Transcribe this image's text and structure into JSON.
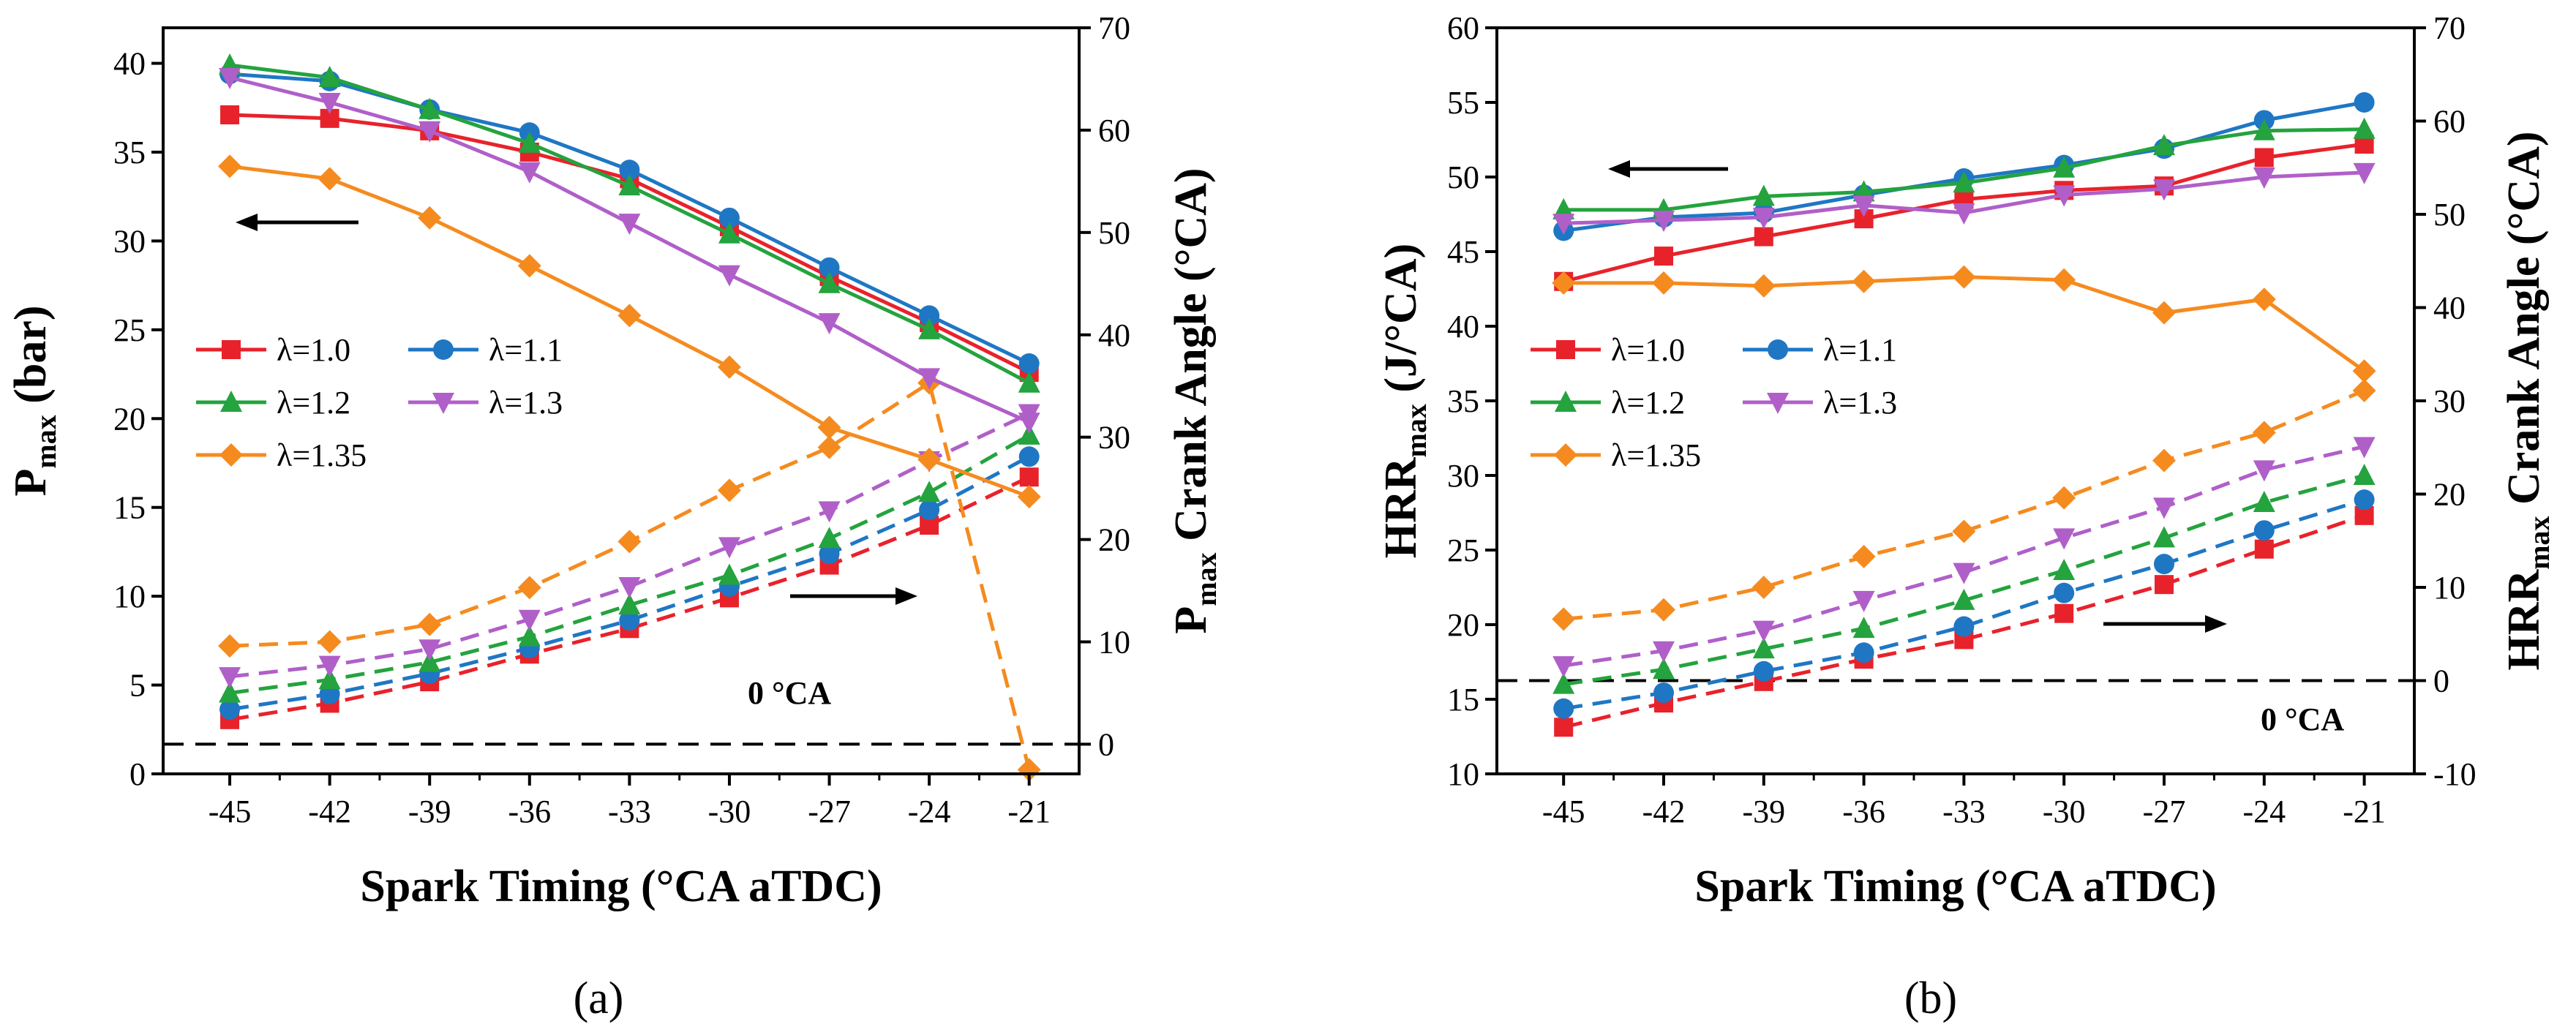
{
  "chart_data": [
    {
      "type": "line",
      "panel_label": "(a)",
      "xlabel": "Spark Timing (°CA aTDC)",
      "ylabel_left": {
        "main": "P",
        "sub": "max",
        "rest": " (bar)"
      },
      "ylabel_right": {
        "main": "P",
        "sub": "max",
        "rest": " Crank Angle (°CA)"
      },
      "x": [
        -45,
        -42,
        -39,
        -36,
        -33,
        -30,
        -27,
        -24,
        -21
      ],
      "xticks": [
        "-45",
        "-42",
        "-39",
        "-36",
        "-33",
        "-30",
        "-27",
        "-24",
        "-21"
      ],
      "ylim_left": [
        0,
        42
      ],
      "yticks_left": [
        "0",
        "5",
        "10",
        "15",
        "20",
        "25",
        "30",
        "35",
        "40"
      ],
      "ylim_right": [
        -2.9,
        70
      ],
      "yticks_right": [
        "0",
        "10",
        "20",
        "30",
        "40",
        "50",
        "60",
        "70"
      ],
      "zero_line_label": "0 °CA",
      "legend_position": "left-middle",
      "series": [
        {
          "name": "λ=1.0",
          "color": "#e8222b",
          "marker": "square",
          "pmax": [
            37.1,
            36.9,
            36.2,
            35.0,
            33.5,
            30.8,
            28.0,
            25.4,
            22.6
          ],
          "crank_angle": [
            2.4,
            4.0,
            6.1,
            8.8,
            11.3,
            14.3,
            17.5,
            21.4,
            26.1
          ]
        },
        {
          "name": "λ=1.1",
          "color": "#1f77c4",
          "marker": "circle",
          "pmax": [
            39.4,
            39.0,
            37.4,
            36.1,
            34.0,
            31.3,
            28.5,
            25.8,
            23.1
          ],
          "crank_angle": [
            3.4,
            4.9,
            6.9,
            9.4,
            12.1,
            15.4,
            18.6,
            22.9,
            28.1
          ]
        },
        {
          "name": "λ=1.2",
          "color": "#24a33e",
          "marker": "triangle-up",
          "pmax": [
            39.9,
            39.2,
            37.4,
            35.5,
            33.1,
            30.4,
            27.6,
            25.0,
            22.0
          ],
          "crank_angle": [
            5.0,
            6.3,
            8.0,
            10.5,
            13.6,
            16.5,
            20.1,
            24.6,
            30.2
          ]
        },
        {
          "name": "λ=1.3",
          "color": "#b05fc9",
          "marker": "triangle-down",
          "pmax": [
            39.2,
            37.8,
            36.2,
            33.9,
            31.0,
            28.1,
            25.4,
            22.3,
            19.8
          ],
          "crank_angle": [
            6.6,
            7.7,
            9.3,
            12.2,
            15.4,
            19.3,
            22.8,
            27.7,
            32.3
          ]
        },
        {
          "name": "λ=1.35",
          "color": "#f58b1f",
          "marker": "diamond",
          "pmax": [
            34.2,
            33.5,
            31.3,
            28.6,
            25.8,
            22.9,
            19.5,
            17.7,
            15.6
          ],
          "crank_angle": [
            9.6,
            10.0,
            11.7,
            15.3,
            19.8,
            24.8,
            29.0,
            35.3,
            -2.5
          ]
        }
      ]
    },
    {
      "type": "line",
      "panel_label": "(b)",
      "xlabel": "Spark Timing (°CA aTDC)",
      "ylabel_left": {
        "main": "HRR",
        "sub": "max",
        "rest": " (J/°CA)"
      },
      "ylabel_right": {
        "main": "HRR",
        "sub": "max",
        "rest": " Crank Angle (°CA)"
      },
      "x": [
        -45,
        -42,
        -39,
        -36,
        -33,
        -30,
        -27,
        -24,
        -21
      ],
      "xticks": [
        "-45",
        "-42",
        "-39",
        "-36",
        "-33",
        "-30",
        "-27",
        "-24",
        "-21"
      ],
      "ylim_left": [
        10,
        60
      ],
      "yticks_left": [
        "10",
        "15",
        "20",
        "25",
        "30",
        "35",
        "40",
        "45",
        "50",
        "55",
        "60"
      ],
      "ylim_right": [
        -10,
        70
      ],
      "yticks_right": [
        "-10",
        "0",
        "10",
        "20",
        "30",
        "40",
        "50",
        "60",
        "70"
      ],
      "zero_line_label": "0 °CA",
      "legend_position": "left-middle",
      "series": [
        {
          "name": "λ=1.0",
          "color": "#e8222b",
          "marker": "square",
          "hrr": [
            43.0,
            44.7,
            46.0,
            47.2,
            48.5,
            49.1,
            49.4,
            51.3,
            52.2
          ],
          "crank_angle": [
            -5.0,
            -2.4,
            -0.1,
            2.3,
            4.4,
            7.2,
            10.3,
            14.1,
            17.7
          ]
        },
        {
          "name": "λ=1.1",
          "color": "#1f77c4",
          "marker": "circle",
          "hrr": [
            46.4,
            47.3,
            47.6,
            48.8,
            49.9,
            50.8,
            51.9,
            53.8,
            55.0
          ],
          "crank_angle": [
            -3.0,
            -1.3,
            1.0,
            3.0,
            5.8,
            9.4,
            12.5,
            16.1,
            19.4
          ]
        },
        {
          "name": "λ=1.2",
          "color": "#24a33e",
          "marker": "triangle-up",
          "hrr": [
            47.8,
            47.8,
            48.7,
            49.0,
            49.6,
            50.6,
            52.1,
            53.1,
            53.2
          ],
          "crank_angle": [
            -0.4,
            1.2,
            3.4,
            5.6,
            8.6,
            11.8,
            15.3,
            19.1,
            22.0
          ]
        },
        {
          "name": "λ=1.3",
          "color": "#b05fc9",
          "marker": "triangle-down",
          "hrr": [
            46.9,
            47.1,
            47.3,
            48.1,
            47.6,
            48.8,
            49.2,
            50.0,
            50.3
          ],
          "crank_angle": [
            1.6,
            3.2,
            5.4,
            8.6,
            11.6,
            15.3,
            18.6,
            22.6,
            25.1
          ]
        },
        {
          "name": "λ=1.35",
          "color": "#f58b1f",
          "marker": "diamond",
          "hrr": [
            42.9,
            42.9,
            42.7,
            43.0,
            43.3,
            43.1,
            40.9,
            41.8,
            37.0
          ],
          "crank_angle": [
            6.6,
            7.6,
            10.0,
            13.3,
            16.0,
            19.6,
            23.6,
            26.6,
            31.1
          ]
        }
      ]
    }
  ]
}
